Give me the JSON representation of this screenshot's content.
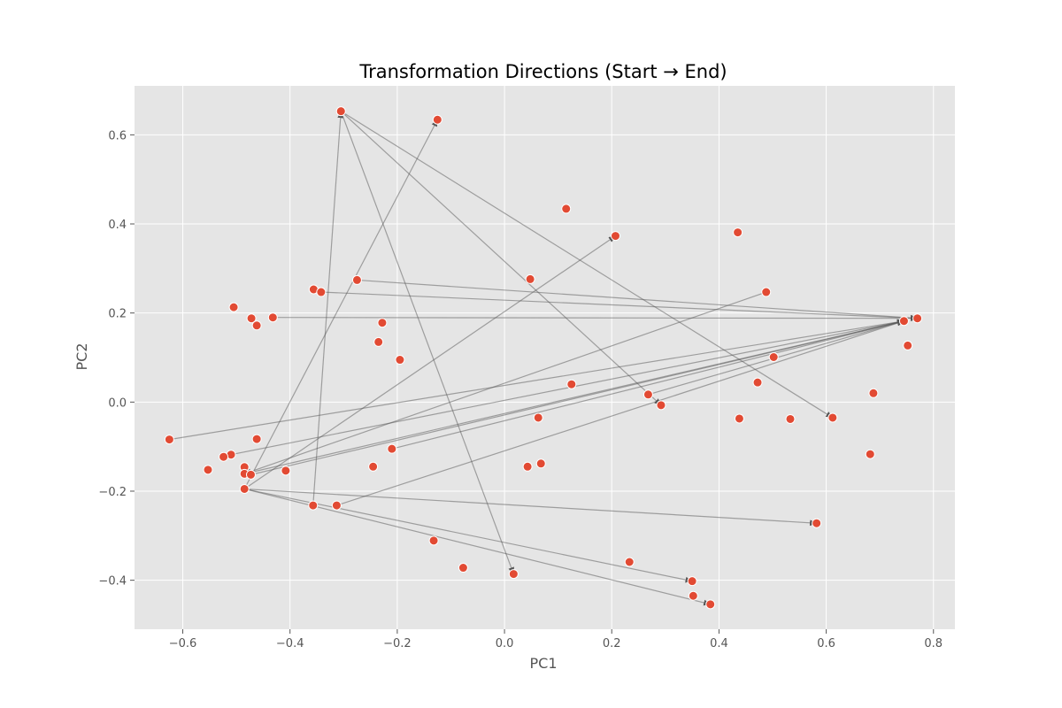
{
  "chart_data": {
    "type": "scatter",
    "title": "Transformation Directions (Start → End)",
    "xlabel": "PC1",
    "ylabel": "PC2",
    "xlim": [
      -0.69,
      0.84
    ],
    "ylim": [
      -0.51,
      0.71
    ],
    "xticks": [
      -0.6,
      -0.4,
      -0.2,
      0.0,
      0.2,
      0.4,
      0.6,
      0.8
    ],
    "yticks": [
      -0.4,
      -0.2,
      0.0,
      0.2,
      0.4,
      0.6
    ],
    "xtick_labels": [
      "−0.6",
      "−0.4",
      "−0.2",
      "0.0",
      "0.2",
      "0.4",
      "0.6",
      "0.8"
    ],
    "ytick_labels": [
      "−0.4",
      "−0.2",
      "0.0",
      "0.2",
      "0.4",
      "0.6"
    ],
    "grid": true,
    "colors": {
      "background": "#e5e5e5",
      "grid": "#ffffff",
      "point": "#e24a33",
      "point_edge": "#ffffff",
      "arrow": "#555555"
    },
    "points": [
      [
        -0.305,
        0.653
      ],
      [
        -0.125,
        0.634
      ],
      [
        0.115,
        0.434
      ],
      [
        0.207,
        0.373
      ],
      [
        0.435,
        0.381
      ],
      [
        -0.275,
        0.274
      ],
      [
        0.048,
        0.276
      ],
      [
        -0.356,
        0.253
      ],
      [
        -0.342,
        0.247
      ],
      [
        0.488,
        0.247
      ],
      [
        -0.505,
        0.213
      ],
      [
        -0.472,
        0.188
      ],
      [
        -0.432,
        0.19
      ],
      [
        -0.462,
        0.172
      ],
      [
        -0.228,
        0.178
      ],
      [
        0.745,
        0.182
      ],
      [
        0.77,
        0.188
      ],
      [
        -0.235,
        0.135
      ],
      [
        -0.195,
        0.095
      ],
      [
        0.752,
        0.127
      ],
      [
        0.502,
        0.101
      ],
      [
        0.125,
        0.04
      ],
      [
        0.472,
        0.044
      ],
      [
        0.268,
        0.017
      ],
      [
        0.688,
        0.02
      ],
      [
        0.292,
        -0.007
      ],
      [
        0.063,
        -0.035
      ],
      [
        0.438,
        -0.037
      ],
      [
        0.533,
        -0.038
      ],
      [
        0.612,
        -0.035
      ],
      [
        -0.625,
        -0.084
      ],
      [
        -0.462,
        -0.083
      ],
      [
        -0.21,
        -0.105
      ],
      [
        -0.51,
        -0.118
      ],
      [
        -0.524,
        -0.123
      ],
      [
        0.682,
        -0.117
      ],
      [
        -0.553,
        -0.152
      ],
      [
        -0.408,
        -0.154
      ],
      [
        -0.245,
        -0.145
      ],
      [
        -0.485,
        -0.146
      ],
      [
        0.043,
        -0.145
      ],
      [
        0.068,
        -0.138
      ],
      [
        -0.485,
        -0.161
      ],
      [
        -0.473,
        -0.163
      ],
      [
        -0.485,
        -0.195
      ],
      [
        -0.357,
        -0.232
      ],
      [
        -0.313,
        -0.232
      ],
      [
        0.582,
        -0.272
      ],
      [
        -0.132,
        -0.311
      ],
      [
        0.233,
        -0.359
      ],
      [
        -0.077,
        -0.372
      ],
      [
        0.017,
        -0.386
      ],
      [
        0.35,
        -0.402
      ],
      [
        0.352,
        -0.435
      ],
      [
        0.384,
        -0.454
      ]
    ],
    "arrows": [
      [
        [
          -0.305,
          0.653
        ],
        [
          0.612,
          -0.035
        ]
      ],
      [
        [
          -0.305,
          0.653
        ],
        [
          0.292,
          -0.007
        ]
      ],
      [
        [
          -0.305,
          0.653
        ],
        [
          0.017,
          -0.386
        ]
      ],
      [
        [
          -0.357,
          -0.232
        ],
        [
          -0.305,
          0.653
        ]
      ],
      [
        [
          -0.485,
          -0.195
        ],
        [
          -0.125,
          0.634
        ]
      ],
      [
        [
          -0.485,
          -0.195
        ],
        [
          0.207,
          0.373
        ]
      ],
      [
        [
          -0.485,
          -0.195
        ],
        [
          0.582,
          -0.272
        ]
      ],
      [
        [
          -0.485,
          -0.195
        ],
        [
          0.35,
          -0.402
        ]
      ],
      [
        [
          -0.485,
          -0.195
        ],
        [
          0.384,
          -0.454
        ]
      ],
      [
        [
          -0.275,
          0.274
        ],
        [
          0.77,
          0.188
        ]
      ],
      [
        [
          -0.342,
          0.247
        ],
        [
          0.77,
          0.188
        ]
      ],
      [
        [
          -0.432,
          0.19
        ],
        [
          0.77,
          0.188
        ]
      ],
      [
        [
          -0.625,
          -0.084
        ],
        [
          0.745,
          0.182
        ]
      ],
      [
        [
          -0.51,
          -0.118
        ],
        [
          0.745,
          0.182
        ]
      ],
      [
        [
          -0.485,
          -0.161
        ],
        [
          0.745,
          0.182
        ]
      ],
      [
        [
          -0.473,
          -0.163
        ],
        [
          0.745,
          0.182
        ]
      ],
      [
        [
          -0.21,
          -0.105
        ],
        [
          0.745,
          0.182
        ]
      ],
      [
        [
          -0.313,
          -0.232
        ],
        [
          0.745,
          0.182
        ]
      ],
      [
        [
          0.268,
          0.017
        ],
        [
          0.745,
          0.182
        ]
      ],
      [
        [
          0.488,
          0.247
        ],
        [
          -0.485,
          -0.161
        ]
      ]
    ]
  }
}
